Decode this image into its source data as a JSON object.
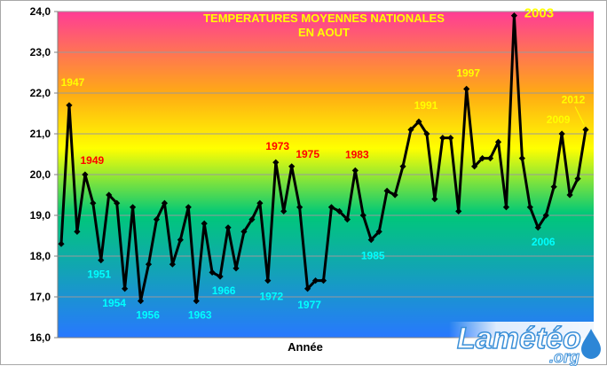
{
  "chart_data": {
    "type": "line",
    "title_line1": "TEMPERATURES MOYENNES NATIONALES",
    "title_line2": "EN AOUT",
    "xlabel": "Année",
    "ylim": [
      16.0,
      24.0
    ],
    "yticks": [
      "16,0",
      "17,0",
      "18,0",
      "19,0",
      "20,0",
      "21,0",
      "22,0",
      "23,0",
      "24,0"
    ],
    "x_start_year": 1946,
    "values": [
      18.3,
      21.7,
      18.6,
      20.0,
      19.3,
      17.9,
      19.5,
      19.3,
      17.2,
      19.2,
      16.9,
      17.8,
      18.9,
      19.3,
      17.8,
      18.4,
      19.2,
      16.9,
      18.8,
      17.6,
      17.5,
      18.7,
      17.7,
      18.6,
      18.9,
      19.3,
      17.4,
      20.3,
      19.1,
      20.2,
      19.2,
      17.2,
      17.4,
      17.4,
      19.2,
      19.1,
      18.9,
      20.1,
      19.0,
      18.4,
      18.6,
      19.6,
      19.5,
      20.2,
      21.1,
      21.3,
      21.0,
      19.4,
      20.9,
      20.9,
      19.1,
      22.1,
      20.2,
      20.4,
      20.4,
      20.8,
      19.2,
      23.9,
      20.4,
      19.2,
      18.7,
      19.0,
      19.7,
      21.0,
      19.5,
      19.9,
      21.1
    ],
    "series_color": "#000000",
    "annotations": [
      {
        "label": "1947",
        "color": "#ffff00"
      },
      {
        "label": "1949",
        "color": "#ff0000"
      },
      {
        "label": "1951",
        "color": "#00ffff"
      },
      {
        "label": "1954",
        "color": "#00ffff"
      },
      {
        "label": "1956",
        "color": "#00ffff"
      },
      {
        "label": "1963",
        "color": "#00ffff"
      },
      {
        "label": "1966",
        "color": "#00ffff"
      },
      {
        "label": "1972",
        "color": "#00ffff"
      },
      {
        "label": "1973",
        "color": "#ff0000"
      },
      {
        "label": "1975",
        "color": "#ff0000"
      },
      {
        "label": "1977",
        "color": "#00ffff"
      },
      {
        "label": "1983",
        "color": "#ff0000"
      },
      {
        "label": "1985",
        "color": "#00ffff"
      },
      {
        "label": "1991",
        "color": "#ffff00"
      },
      {
        "label": "1997",
        "color": "#ffff00"
      },
      {
        "label": "2003",
        "color": "#ffff00"
      },
      {
        "label": "2006",
        "color": "#00ffff"
      },
      {
        "label": "2009",
        "color": "#ffff00"
      },
      {
        "label": "2012",
        "color": "#ffff00"
      }
    ],
    "background_gradient": [
      "#ff3c96",
      "#ffaa14",
      "#ffff00",
      "#00c878",
      "#2878ff"
    ]
  },
  "logo": {
    "main": "Lamétéo",
    "sub": ".org",
    "colors": {
      "text": "#ffffff",
      "outline": "#3a8fd8",
      "drop": "#2d86d6"
    }
  }
}
